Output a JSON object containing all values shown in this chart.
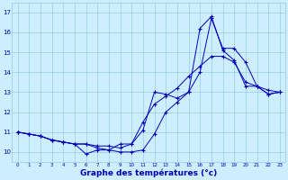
{
  "xlabel": "Graphe des températures (°c)",
  "x": [
    0,
    1,
    2,
    3,
    4,
    5,
    6,
    7,
    8,
    9,
    10,
    11,
    12,
    13,
    14,
    15,
    16,
    17,
    18,
    19,
    20,
    21,
    22,
    23
  ],
  "line1": [
    11.0,
    10.9,
    10.8,
    10.6,
    10.5,
    10.4,
    9.9,
    10.1,
    10.1,
    10.4,
    10.4,
    11.1,
    13.0,
    12.9,
    12.7,
    13.0,
    16.2,
    16.8,
    15.1,
    14.6,
    13.3,
    13.3,
    12.9,
    13.0
  ],
  "line2": [
    11.0,
    10.9,
    10.8,
    10.6,
    10.5,
    10.4,
    10.4,
    10.3,
    10.3,
    10.2,
    10.4,
    11.5,
    12.4,
    12.8,
    13.2,
    13.8,
    14.3,
    14.8,
    14.8,
    14.5,
    13.5,
    13.3,
    13.1,
    13.0
  ],
  "line3": [
    11.0,
    10.9,
    10.8,
    10.6,
    10.5,
    10.4,
    10.4,
    10.2,
    10.1,
    10.0,
    10.0,
    10.1,
    10.9,
    12.0,
    12.5,
    13.0,
    14.0,
    16.7,
    15.2,
    15.2,
    14.5,
    13.3,
    12.9,
    13.0
  ],
  "line_color": "#0000bb",
  "bg_color": "#cceeff",
  "grid_color": "#99ccdd",
  "ylim": [
    9.5,
    17.5
  ],
  "xlim": [
    -0.5,
    23.5
  ],
  "yticks": [
    10,
    11,
    12,
    13,
    14,
    15,
    16,
    17
  ],
  "xticks": [
    0,
    1,
    2,
    3,
    4,
    5,
    6,
    7,
    8,
    9,
    10,
    11,
    12,
    13,
    14,
    15,
    16,
    17,
    18,
    19,
    20,
    21,
    22,
    23
  ]
}
